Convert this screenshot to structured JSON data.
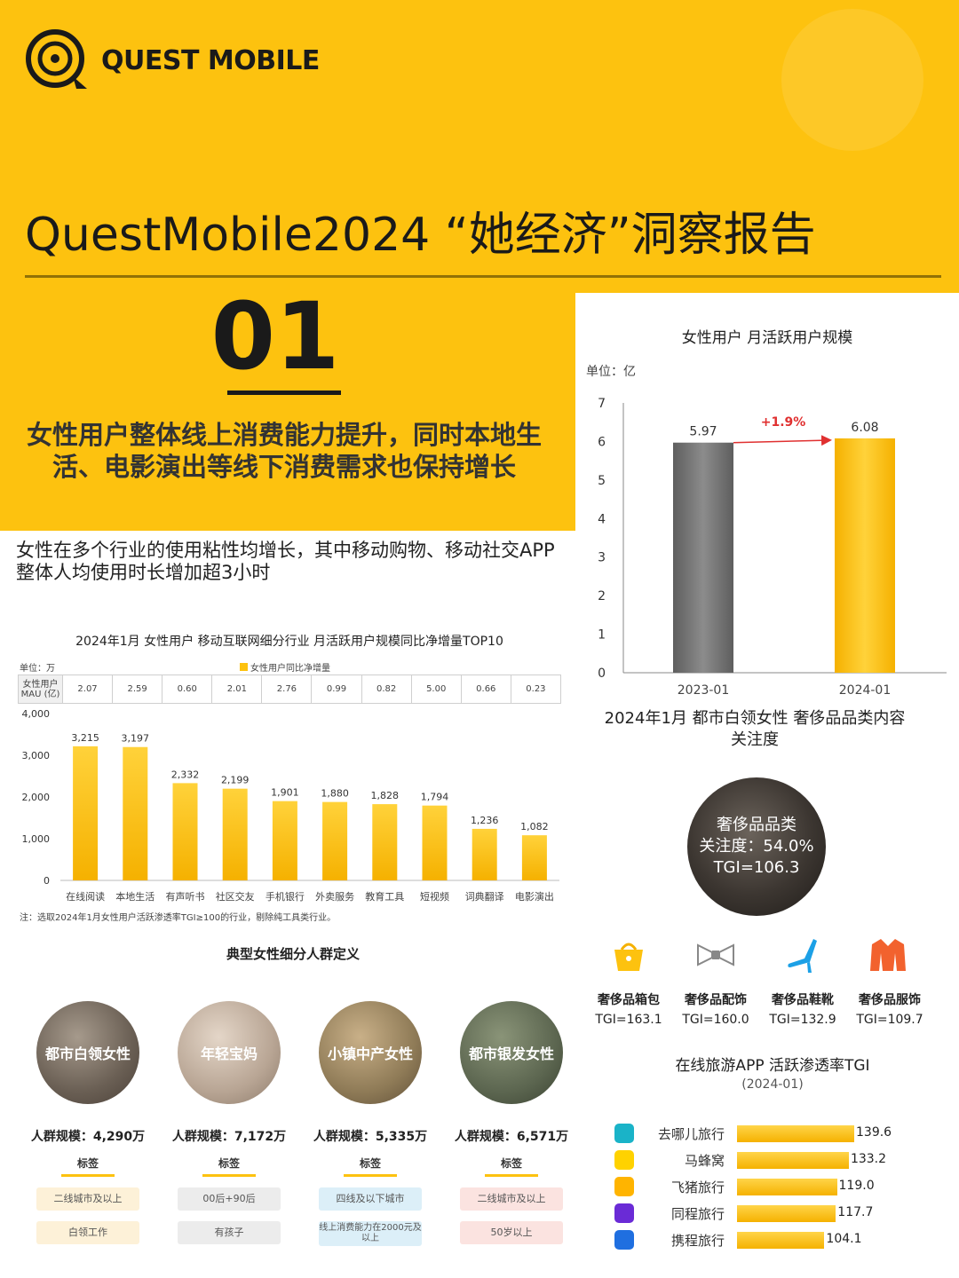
{
  "brand": "QUEST MOBILE",
  "report_title": "QuestMobile2024 “她经济”洞察报告",
  "section_number": "01",
  "section_headline": "女性用户整体线上消费能力提升，同时本地生活、电影演出等线下消费需求也保持增长",
  "section_sub": "女性在多个行业的使用粘性均增长，其中移动购物、移动社交APP整体人均使用时长增加超3小时",
  "mau_chart": {
    "title": "女性用户 月活跃用户规模",
    "unit": "单位：亿",
    "growth_label": "+1.9%",
    "colors": [
      "#7a7a7a",
      "#fdc20f"
    ]
  },
  "top10_chart": {
    "title": "2024年1月 女性用户 移动互联网细分行业 月活跃用户规模同比净增量TOP10",
    "unit": "单位：万",
    "legend": "女性用户同比净增量",
    "mau_row_label": "女性用户MAU (亿)",
    "mau_row": [
      "2.07",
      "2.59",
      "0.60",
      "2.01",
      "2.76",
      "0.99",
      "0.82",
      "5.00",
      "0.66",
      "0.23"
    ],
    "note": "注：选取2024年1月女性用户活跃渗透率TGI≥100的行业，剔除纯工具类行业。"
  },
  "luxury": {
    "title": "2024年1月 都市白领女性 奢侈品品类内容关注度",
    "circle_line1": "奢侈品品类",
    "circle_line2": "关注度：54.0%",
    "circle_line3": "TGI=106.3",
    "items": [
      {
        "name": "奢侈品箱包",
        "tgi": "TGI=163.1",
        "icon": "handbag-icon"
      },
      {
        "name": "奢侈品配饰",
        "tgi": "TGI=160.0",
        "icon": "bowtie-icon"
      },
      {
        "name": "奢侈品鞋靴",
        "tgi": "TGI=132.9",
        "icon": "high-heel-icon"
      },
      {
        "name": "奢侈品服饰",
        "tgi": "TGI=109.7",
        "icon": "coat-icon"
      }
    ]
  },
  "travel": {
    "title": "在线旅游APP 活跃渗透率TGI",
    "subtitle": "(2024-01)",
    "apps": [
      {
        "name": "去哪儿旅行",
        "value": 139.6,
        "label": "139.6",
        "color": "#1ab3c8",
        "icon": "qunar-icon"
      },
      {
        "name": "马蜂窝",
        "value": 133.2,
        "label": "133.2",
        "color": "#ffd200",
        "icon": "mafengwo-icon"
      },
      {
        "name": "飞猪旅行",
        "value": 119.0,
        "label": "119.0",
        "color": "#ffb400",
        "icon": "fliggy-icon"
      },
      {
        "name": "同程旅行",
        "value": 117.7,
        "label": "117.7",
        "color": "#6a2bd6",
        "icon": "tongcheng-icon"
      },
      {
        "name": "携程旅行",
        "value": 104.1,
        "label": "104.1",
        "color": "#1f6fe0",
        "icon": "ctrip-icon"
      }
    ]
  },
  "personas": {
    "title": "典型女性细分人群定义",
    "tag_header": "标签",
    "items": [
      {
        "name": "都市白领女性",
        "scale": "人群规模：4,290万",
        "tags": [
          "二线城市及以上",
          "白领工作"
        ],
        "tag_color": "#fdf1d8"
      },
      {
        "name": "年轻宝妈",
        "scale": "人群规模：7,172万",
        "tags": [
          "00后+90后",
          "有孩子"
        ],
        "tag_color": "#ececec"
      },
      {
        "name": "小镇中产女性",
        "scale": "人群规模：5,335万",
        "tags": [
          "四线及以下城市",
          "线上消费能力在2000元及以上"
        ],
        "tag_color": "#dceff8"
      },
      {
        "name": "都市银发女性",
        "scale": "人群规模：6,571万",
        "tags": [
          "二线城市及以上",
          "50岁以上"
        ],
        "tag_color": "#fbe3e0"
      }
    ]
  },
  "chart_data": [
    {
      "type": "bar",
      "title": "女性用户 月活跃用户规模",
      "ylabel": "单位：亿",
      "categories": [
        "2023-01",
        "2024-01"
      ],
      "values": [
        5.97,
        6.08
      ],
      "value_labels": [
        "5.97",
        "6.08"
      ],
      "annotation": "+1.9%",
      "ylim": [
        0,
        7
      ],
      "yticks": [
        0,
        1,
        2,
        3,
        4,
        5,
        6,
        7
      ]
    },
    {
      "type": "bar",
      "title": "2024年1月 女性用户 移动互联网细分行业 月活跃用户规模同比净增量TOP10",
      "ylabel": "单位：万",
      "categories": [
        "在线阅读",
        "本地生活",
        "有声听书",
        "社区交友",
        "手机银行",
        "外卖服务",
        "教育工具",
        "短视频",
        "词典翻译",
        "电影演出"
      ],
      "series": [
        {
          "name": "女性用户同比净增量",
          "values": [
            3215,
            3197,
            2332,
            2199,
            1901,
            1880,
            1828,
            1794,
            1236,
            1082
          ]
        }
      ],
      "value_labels": [
        "3,215",
        "3,197",
        "2,332",
        "2,199",
        "1,901",
        "1,880",
        "1,828",
        "1,794",
        "1,236",
        "1,082"
      ],
      "ylim": [
        0,
        4000
      ],
      "yticks": [
        0,
        1000,
        2000,
        3000,
        4000
      ],
      "ytick_labels": [
        "0",
        "1,000",
        "2,000",
        "3,000",
        "4,000"
      ]
    },
    {
      "type": "bar",
      "title": "在线旅游APP 活跃渗透率TGI",
      "categories": [
        "去哪儿旅行",
        "马蜂窝",
        "飞猪旅行",
        "同程旅行",
        "携程旅行"
      ],
      "values": [
        139.6,
        133.2,
        119.0,
        117.7,
        104.1
      ]
    }
  ]
}
